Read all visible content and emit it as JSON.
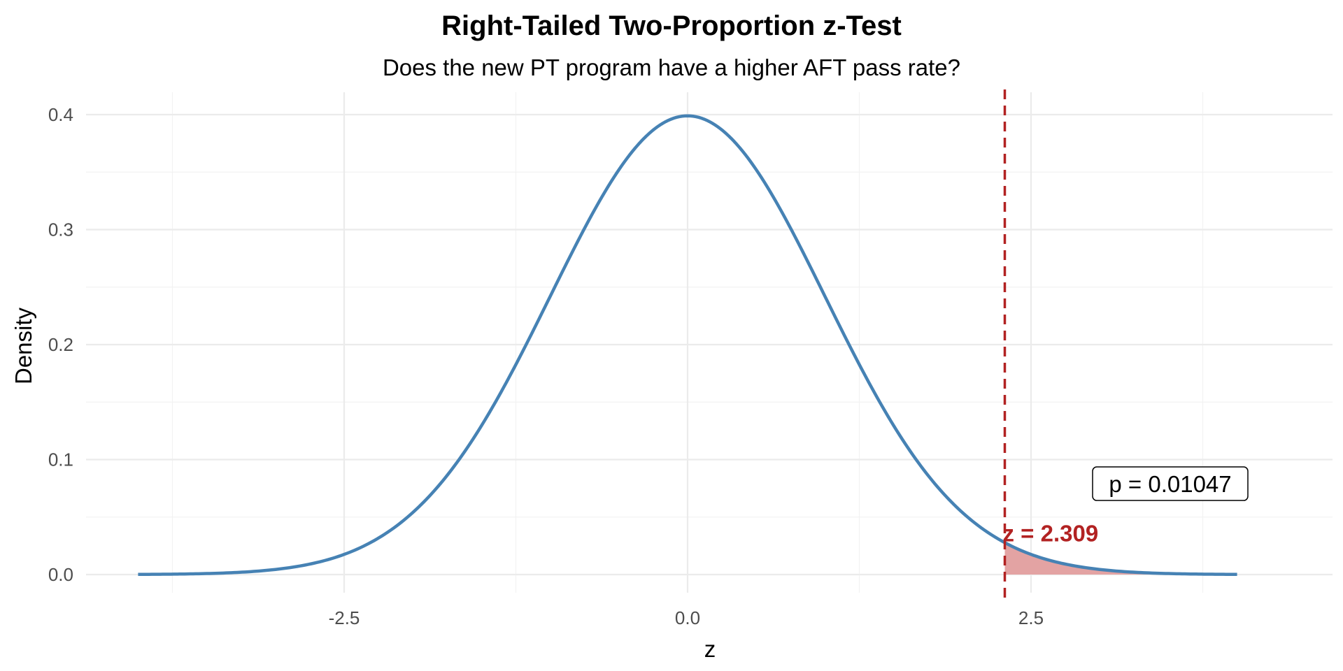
{
  "chart_data": {
    "type": "line",
    "title": "Right-Tailed Two-Proportion z-Test",
    "subtitle": "Does the new PT program have a higher AFT pass rate?",
    "xlabel": "z",
    "ylabel": "Density",
    "xlim": [
      -4,
      4
    ],
    "ylim": [
      0,
      0.4
    ],
    "x_ticks": [
      -2.5,
      0.0,
      2.5
    ],
    "x_tick_labels": [
      "-2.5",
      "0.0",
      "2.5"
    ],
    "y_ticks": [
      0.0,
      0.1,
      0.2,
      0.3,
      0.4
    ],
    "y_tick_labels": [
      "0.0",
      "0.1",
      "0.2",
      "0.3",
      "0.4"
    ],
    "grid": true,
    "series": [
      {
        "distribution": "standard normal",
        "x": [
          -4.0,
          -3.5,
          -3.0,
          -2.5,
          -2.0,
          -1.5,
          -1.0,
          -0.5,
          0.0,
          0.5,
          1.0,
          1.5,
          2.0,
          2.309,
          2.5,
          3.0,
          3.5,
          4.0
        ],
        "y": [
          0.0001,
          0.0009,
          0.0044,
          0.0175,
          0.054,
          0.1295,
          0.242,
          0.3521,
          0.3989,
          0.3521,
          0.242,
          0.1295,
          0.054,
          0.0277,
          0.0175,
          0.0044,
          0.0009,
          0.0001
        ],
        "color": "#4682B4"
      }
    ],
    "critical_z": 2.309,
    "z_label": "z = 2.309",
    "p_label": "p = 0.01047",
    "tail": "right",
    "line_color": "#4682B4",
    "marker_color": "#B22222",
    "shade_color": "#E3A3A3"
  }
}
